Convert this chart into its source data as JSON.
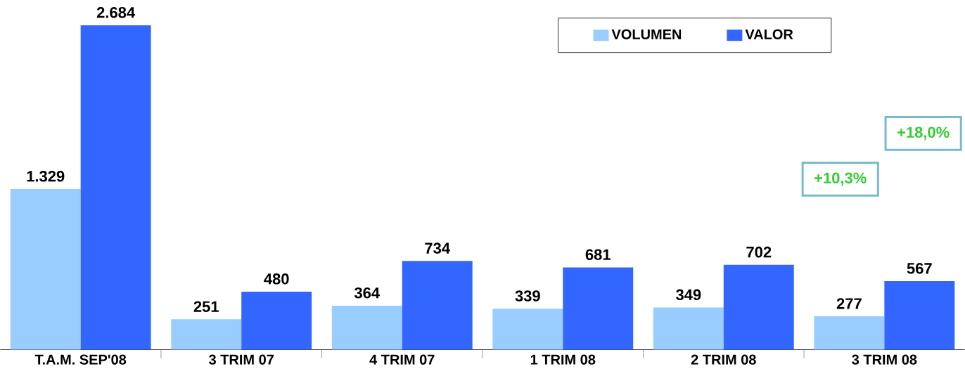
{
  "chart_data": {
    "type": "bar",
    "categories": [
      "T.A.M. SEP'08",
      "3 TRIM 07",
      "4 TRIM 07",
      "1 TRIM 08",
      "2 TRIM 08",
      "3 TRIM 08"
    ],
    "series": [
      {
        "name": "VOLUMEN",
        "color": "#99ccff",
        "values": [
          1329,
          251,
          364,
          339,
          349,
          277
        ],
        "value_labels": [
          "1.329",
          "251",
          "364",
          "339",
          "349",
          "277"
        ]
      },
      {
        "name": "VALOR",
        "color": "#3366ff",
        "values": [
          2684,
          480,
          734,
          681,
          702,
          567
        ],
        "value_labels": [
          "2.684",
          "480",
          "734",
          "681",
          "702",
          "567"
        ]
      }
    ],
    "legend": "top right",
    "annotations": [
      "+18,0%",
      "+10,3%"
    ]
  }
}
